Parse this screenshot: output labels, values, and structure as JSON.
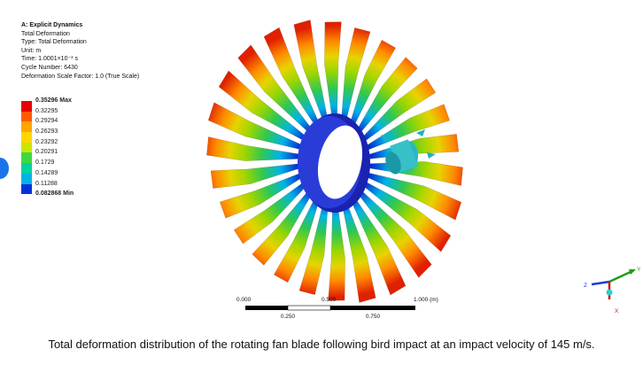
{
  "header": {
    "lines": [
      "A: Explicit Dynamics",
      "Total Deformation",
      "Type: Total Deformation",
      "Unit: m",
      "Time: 1.0001×10⁻³ s",
      "Cycle Number: 6430",
      "Deformation Scale Factor: 1.0 (True Scale)"
    ]
  },
  "legend": {
    "labels": [
      "0.35296 Max",
      "0.32295",
      "0.29294",
      "0.26293",
      "0.23292",
      "0.20291",
      "0.1729",
      "0.14289",
      "0.11288",
      "0.082868 Min"
    ],
    "colors": [
      "#e60000",
      "#ff5a00",
      "#ffa500",
      "#ffd700",
      "#c8e600",
      "#40d840",
      "#00d2a0",
      "#00b4e6",
      "#0032dc"
    ]
  },
  "scale_bar": {
    "top_labels": [
      "0.000",
      "0.500",
      "1.000 (m)"
    ],
    "bottom_labels": [
      "0.250",
      "0.750"
    ]
  },
  "triad": {
    "axes": [
      "Y",
      "Z",
      "X"
    ]
  },
  "caption": "Total deformation distribution of the rotating fan blade following bird impact at an impact velocity of 145 m/s."
}
